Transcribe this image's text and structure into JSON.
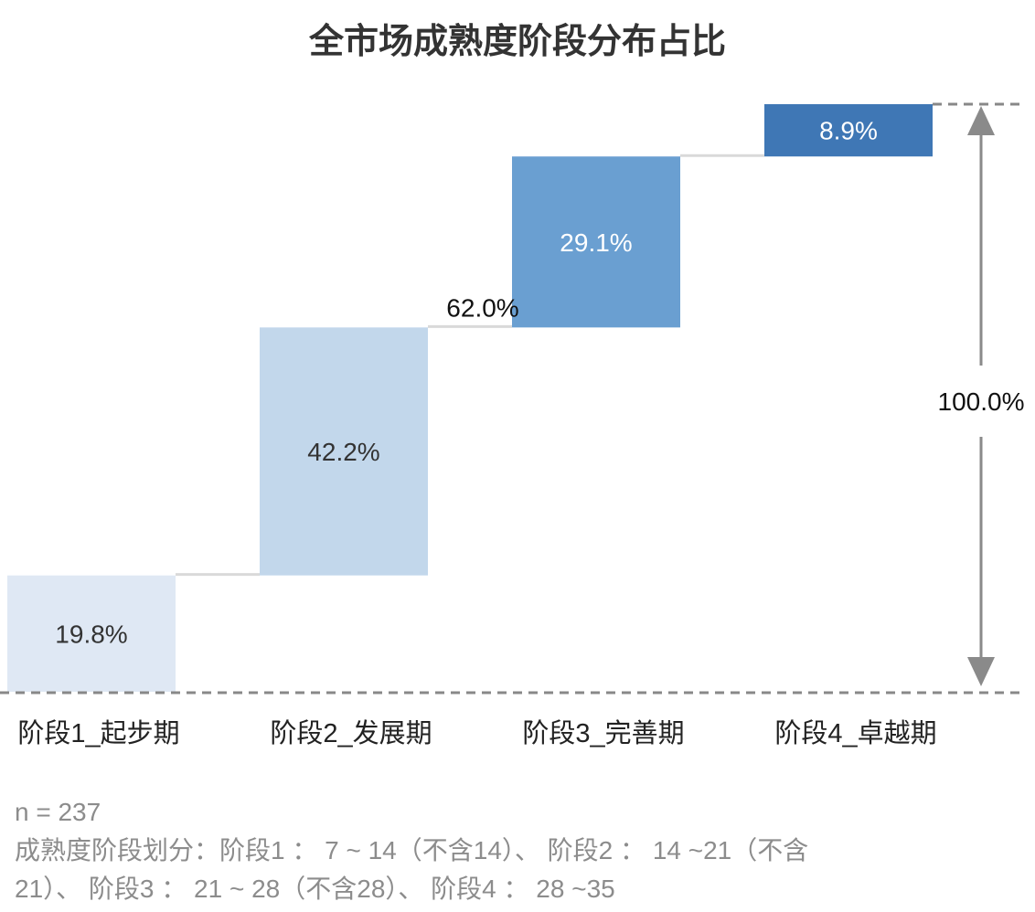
{
  "chart_data": {
    "type": "bar",
    "subtype": "waterfall",
    "title": "全市场成熟度阶段分布占比",
    "categories": [
      "阶段1_起步期",
      "阶段2_发展期",
      "阶段3_完善期",
      "阶段4_卓越期"
    ],
    "values": [
      19.8,
      42.2,
      29.1,
      8.9
    ],
    "value_labels": [
      "19.8%",
      "42.2%",
      "29.1%",
      "8.9%"
    ],
    "bar_colors": [
      "#dfe8f4",
      "#c2d7eb",
      "#6a9fd1",
      "#3f77b5"
    ],
    "label_colors": [
      "#333333",
      "#333333",
      "#ffffff",
      "#ffffff"
    ],
    "subtotal": {
      "after_category": "阶段2_发展期",
      "value": 62.0,
      "label": "62.0%"
    },
    "total": {
      "value": 100.0,
      "label": "100.0%"
    },
    "ylim": [
      0,
      100
    ],
    "xlabel": "",
    "ylabel": "",
    "grid": false,
    "connector_color": "#d9d9d9",
    "guide_color": "#888888"
  },
  "notes": {
    "sample": "n = 237",
    "line1": "成熟度阶段划分：阶段1 ： 7 ~ 14（不含14）、 阶段2 ： 14 ~21（不含",
    "line2": "21）、 阶段3 ： 21 ~ 28（不含28）、 阶段4 ： 28 ~35"
  }
}
